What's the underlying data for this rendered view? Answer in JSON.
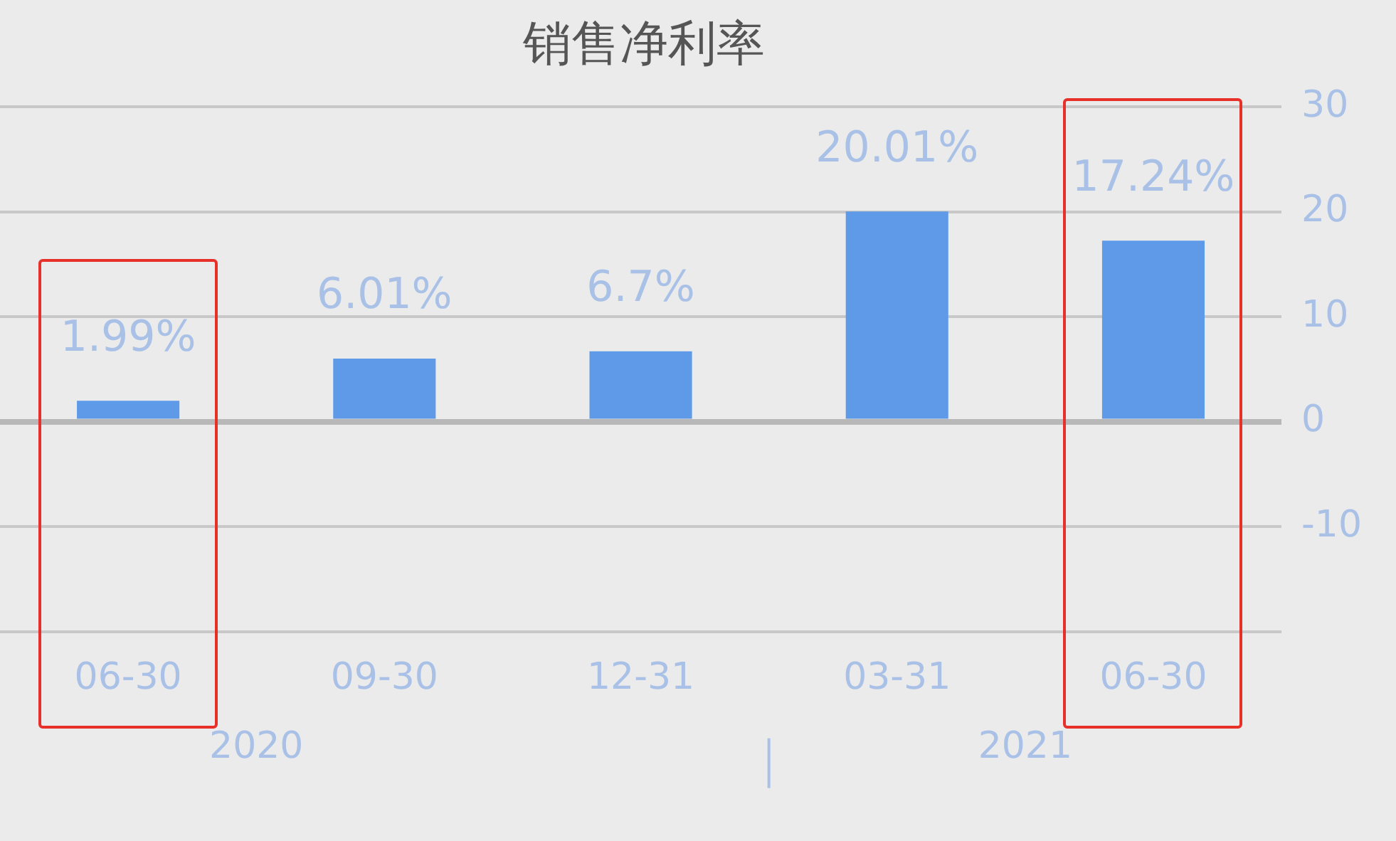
{
  "chart_data": {
    "type": "bar",
    "title": "销售净利率",
    "categories": [
      "06-30",
      "09-30",
      "12-31",
      "03-31",
      "06-30"
    ],
    "values": [
      1.99,
      6.01,
      6.7,
      20.01,
      17.24
    ],
    "color": "#5e9ae8",
    "value_labels": [
      "1.99%",
      "6.01%",
      "6.7%",
      "20.01%",
      "17.24%"
    ],
    "ylim": [
      -20,
      30
    ],
    "yticks": [
      {
        "value": -20,
        "label": null
      },
      -10,
      0,
      10,
      20,
      30
    ],
    "grid": "y",
    "annotations": [
      "2020",
      "2021"
    ]
  }
}
